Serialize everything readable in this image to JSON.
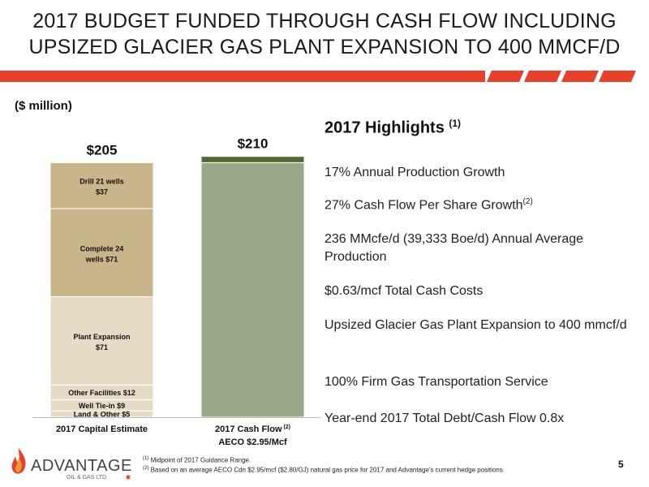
{
  "title_line1": "2017 BUDGET FUNDED THROUGH CASH FLOW INCLUDING",
  "title_line2": "UPSIZED GLACIER GAS PLANT EXPANSION TO 400 MMCF/D",
  "unit_label": "($ million)",
  "colors": {
    "stripe": "#e8402a",
    "drill": "#c8b589",
    "complete": "#c8b589",
    "plant": "#e6dcc6",
    "other": "#e6dcc6",
    "tiein": "#e6dcc6",
    "land": "#e6dcc6",
    "cashflow": "#9aa887",
    "cashflow_top": "#4f6a33"
  },
  "chart_data": {
    "type": "bar",
    "stacked": true,
    "ylim": [
      0,
      210
    ],
    "categories": [
      {
        "label": "2017 Capital Estimate",
        "sub": "",
        "sup": ""
      },
      {
        "label": "2017 Cash Flow",
        "sup": "(2)",
        "sub": "AECO $2.95/Mcf"
      }
    ],
    "totals": [
      "$205",
      "$210"
    ],
    "bars": [
      {
        "segments": [
          {
            "key": "land",
            "value": 5,
            "label": "Land & Other $5"
          },
          {
            "key": "tiein",
            "value": 9,
            "label": "Well Tie-in $9"
          },
          {
            "key": "other",
            "value": 12,
            "label": "Other Facilities $12"
          },
          {
            "key": "plant",
            "value": 71,
            "label1": "Plant Expansion",
            "label2": "$71"
          },
          {
            "key": "complete",
            "value": 71,
            "label1": "Complete 24",
            "label2": "wells $71"
          },
          {
            "key": "drill",
            "value": 37,
            "label1": "Drill 21 wells",
            "label2": "$37"
          }
        ]
      },
      {
        "segments": [
          {
            "key": "cashflow",
            "value": 205
          },
          {
            "key": "cashflow_top",
            "value": 5
          }
        ]
      }
    ]
  },
  "highlights": {
    "heading": "2017 Highlights",
    "heading_sup": "(1)",
    "items": [
      {
        "text": "17% Annual Production Growth",
        "sup": ""
      },
      {
        "text": "27% Cash Flow Per Share Growth",
        "sup": "(2)"
      },
      {
        "text": "236 MMcfe/d (39,333 Boe/d) Annual Average Production",
        "sup": ""
      },
      {
        "text": "$0.63/mcf Total Cash Costs",
        "sup": ""
      },
      {
        "text": "Upsized Glacier Gas Plant Expansion to 400 mmcf/d",
        "sup": ""
      },
      {
        "text": "100% Firm Gas Transportation Service",
        "sup": ""
      },
      {
        "text": "Year-end 2017 Total Debt/Cash Flow 0.8x",
        "sup": ""
      }
    ]
  },
  "footnotes": [
    {
      "sup": "(1)",
      "text": "Midpoint of 2017 Guidance Range."
    },
    {
      "sup": "(2)",
      "text": "Based on an average AECO Cdn $2.95/mcf ($2.80/GJ) natural gas price for 2017 and Advantage's current hedge positions"
    }
  ],
  "page_number": "5",
  "logo": {
    "name": "ADVANTAGE",
    "sub": "OIL & GAS LTD."
  }
}
